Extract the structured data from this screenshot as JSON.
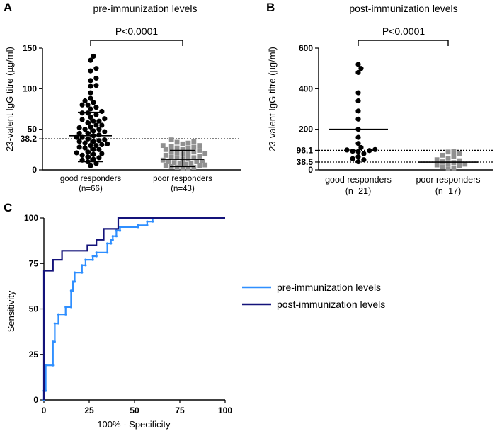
{
  "chart_data": [
    {
      "panel": "A",
      "type": "scatter",
      "title": "pre-immunization levels",
      "ylabel": "23-valent IgG titre (µg/ml)",
      "ylim": [
        0,
        150
      ],
      "yticks": [
        0,
        50,
        100,
        150
      ],
      "ytick_labels": [
        "0",
        "50",
        "100",
        "150"
      ],
      "threshold": {
        "value": 38.2,
        "label": "38.2"
      },
      "pvalue": "P<0.0001",
      "groups": [
        {
          "label": "good responders",
          "n_label": "(n=66)",
          "marker": "circle",
          "color": "#000000",
          "mean": 42,
          "sd_upper": 71,
          "sd_lower": 10,
          "values": [
            140,
            135,
            125,
            122,
            113,
            110,
            104,
            103,
            95,
            88,
            85,
            83,
            80,
            80,
            77,
            75,
            72,
            70,
            70,
            68,
            65,
            63,
            62,
            60,
            60,
            58,
            55,
            55,
            53,
            52,
            50,
            50,
            48,
            47,
            45,
            45,
            43,
            42,
            40,
            40,
            38,
            37,
            36,
            35,
            35,
            33,
            32,
            31,
            30,
            30,
            28,
            27,
            25,
            25,
            22,
            21,
            20,
            19,
            18,
            16,
            15,
            13,
            12,
            10,
            8,
            5
          ]
        },
        {
          "label": "poor responders",
          "n_label": "(n=43)",
          "marker": "square",
          "color": "#909090",
          "mean": 13,
          "sd_upper": 24,
          "sd_lower": 4,
          "values": [
            37,
            35,
            34,
            33,
            32,
            30,
            30,
            29,
            28,
            27,
            26,
            25,
            25,
            24,
            23,
            22,
            21,
            20,
            20,
            19,
            18,
            17,
            16,
            15,
            15,
            14,
            13,
            12,
            11,
            10,
            10,
            9,
            8,
            8,
            7,
            6,
            5,
            5,
            4,
            3,
            3,
            2,
            2
          ]
        }
      ]
    },
    {
      "panel": "B",
      "type": "scatter",
      "title": "post-immunization levels",
      "ylabel": "23-valent IgG titre (µg/ml)",
      "ylim": [
        0,
        600
      ],
      "yticks": [
        0,
        200,
        400,
        600
      ],
      "ytick_labels": [
        "0",
        "200",
        "400",
        "600"
      ],
      "thresholds": [
        {
          "value": 96.1,
          "label": "96.1"
        },
        {
          "value": 38.5,
          "label": "38.5"
        }
      ],
      "pvalue": "P<0.0001",
      "groups": [
        {
          "label": "good responders",
          "n_label": "(n=21)",
          "marker": "circle",
          "color": "#000000",
          "mean": 200,
          "values": [
            520,
            500,
            480,
            380,
            340,
            290,
            250,
            200,
            160,
            130,
            110,
            100,
            98,
            95,
            92,
            90,
            80,
            65,
            55,
            50,
            40
          ]
        },
        {
          "label": "poor responders",
          "n_label": "(n=17)",
          "marker": "square",
          "color": "#909090",
          "mean": 38,
          "values": [
            92,
            88,
            80,
            72,
            65,
            58,
            50,
            45,
            40,
            36,
            32,
            28,
            24,
            20,
            15,
            10,
            5
          ]
        }
      ]
    },
    {
      "panel": "C",
      "type": "line",
      "xlabel": "100% - Specificity",
      "ylabel": "Sensitivity",
      "xlim": [
        0,
        100
      ],
      "ylim": [
        0,
        100
      ],
      "ticks": [
        0,
        25,
        50,
        75,
        100
      ],
      "tick_labels": [
        "0",
        "25",
        "50",
        "75",
        "100"
      ],
      "series": [
        {
          "name": "pre-immunization levels",
          "color": "#2f8fff",
          "markers": true,
          "points": [
            [
              0,
              0
            ],
            [
              0,
              5
            ],
            [
              1,
              5
            ],
            [
              1,
              19
            ],
            [
              5,
              19
            ],
            [
              5,
              32
            ],
            [
              6,
              32
            ],
            [
              6,
              42
            ],
            [
              8,
              42
            ],
            [
              8,
              47
            ],
            [
              12,
              47
            ],
            [
              12,
              51
            ],
            [
              15,
              51
            ],
            [
              15,
              60
            ],
            [
              16,
              60
            ],
            [
              16,
              65
            ],
            [
              17,
              65
            ],
            [
              17,
              70
            ],
            [
              21,
              70
            ],
            [
              21,
              74
            ],
            [
              23,
              74
            ],
            [
              23,
              77
            ],
            [
              27,
              77
            ],
            [
              27,
              79
            ],
            [
              29,
              79
            ],
            [
              29,
              81
            ],
            [
              35,
              81
            ],
            [
              35,
              86
            ],
            [
              37,
              86
            ],
            [
              37,
              88
            ],
            [
              38,
              88
            ],
            [
              38,
              90
            ],
            [
              40,
              90
            ],
            [
              40,
              93
            ],
            [
              42,
              93
            ],
            [
              42,
              95
            ],
            [
              52,
              95
            ],
            [
              52,
              96
            ],
            [
              57,
              96
            ],
            [
              57,
              98
            ],
            [
              60,
              98
            ],
            [
              60,
              100
            ],
            [
              100,
              100
            ]
          ]
        },
        {
          "name": "post-immunization levels",
          "color": "#14137a",
          "markers": false,
          "points": [
            [
              0,
              0
            ],
            [
              0,
              71
            ],
            [
              5,
              71
            ],
            [
              5,
              77
            ],
            [
              10,
              77
            ],
            [
              10,
              82
            ],
            [
              24,
              82
            ],
            [
              24,
              85
            ],
            [
              29,
              85
            ],
            [
              29,
              88
            ],
            [
              33,
              88
            ],
            [
              33,
              94
            ],
            [
              38,
              94
            ],
            [
              38,
              94
            ],
            [
              41,
              94
            ],
            [
              41,
              100
            ],
            [
              100,
              100
            ]
          ]
        }
      ]
    }
  ]
}
